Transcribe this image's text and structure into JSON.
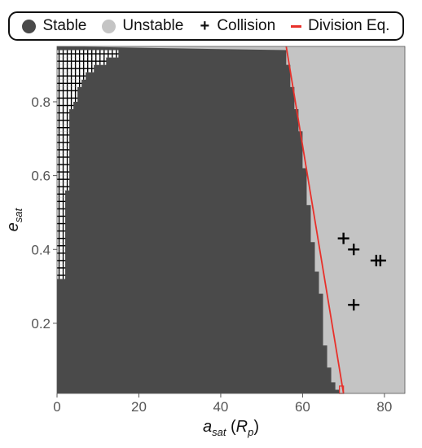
{
  "legend": {
    "items": [
      {
        "label": "Stable",
        "marker": "dot",
        "color": "#4a4a4a"
      },
      {
        "label": "Unstable",
        "marker": "dot",
        "color": "#c4c4c4"
      },
      {
        "label": "Collision",
        "marker": "plus",
        "color": "#000000"
      },
      {
        "label": "Division Eq.",
        "marker": "dash",
        "color": "#e8302a"
      }
    ]
  },
  "chart_data": {
    "type": "heatmap",
    "x_axis": {
      "label_main": "a",
      "label_sub": "sat",
      "label_unit_main": "R",
      "label_unit_sub": "p",
      "lim": [
        0,
        85
      ],
      "ticks": [
        0,
        20,
        40,
        60,
        80
      ]
    },
    "y_axis": {
      "label_main": "e",
      "label_sub": "sat",
      "lim": [
        0.01,
        0.95
      ],
      "ticks": [
        0.2,
        0.4,
        0.6,
        0.8
      ]
    },
    "grid": false,
    "colors": {
      "stable": "#4a4a4a",
      "unstable": "#c4c4c4",
      "collision": "#000000",
      "division": "#e8302a"
    },
    "grid_cell": {
      "da": 1.0,
      "de": 0.02
    },
    "stability_boundary": {
      "description_note": "unstable for a_sat greater than boundary",
      "e": [
        0.02,
        0.04,
        0.06,
        0.08,
        0.1,
        0.12,
        0.14,
        0.16,
        0.18,
        0.2,
        0.22,
        0.24,
        0.26,
        0.28,
        0.3,
        0.32,
        0.34,
        0.36,
        0.38,
        0.4,
        0.42,
        0.44,
        0.46,
        0.48,
        0.5,
        0.52,
        0.54,
        0.56,
        0.58,
        0.6,
        0.62,
        0.64,
        0.66,
        0.68,
        0.7,
        0.72,
        0.74,
        0.76,
        0.78,
        0.8,
        0.82,
        0.84,
        0.86,
        0.88,
        0.9,
        0.92,
        0.94
      ],
      "a": [
        69,
        68,
        67,
        67,
        66,
        66,
        66,
        65,
        65,
        65,
        65,
        65,
        65,
        65,
        64,
        64,
        64,
        63,
        63,
        63,
        63,
        62,
        62,
        62,
        62,
        62,
        61,
        61,
        61,
        61,
        61,
        60,
        60,
        60,
        60,
        60,
        59,
        59,
        59,
        58,
        58,
        58,
        57,
        57,
        57,
        56,
        56
      ]
    },
    "collision_left_region": {
      "note": "collision cells near planet",
      "rows": [
        {
          "e": 0.94,
          "a_max": 15
        },
        {
          "e": 0.92,
          "a_max": 12
        },
        {
          "e": 0.9,
          "a_max": 9
        },
        {
          "e": 0.88,
          "a_max": 7
        },
        {
          "e": 0.86,
          "a_max": 6
        },
        {
          "e": 0.84,
          "a_max": 5
        },
        {
          "e": 0.82,
          "a_max": 5
        },
        {
          "e": 0.8,
          "a_max": 4
        },
        {
          "e": 0.78,
          "a_max": 3
        },
        {
          "e": 0.76,
          "a_max": 3
        },
        {
          "e": 0.74,
          "a_max": 3
        },
        {
          "e": 0.72,
          "a_max": 3
        },
        {
          "e": 0.7,
          "a_max": 3
        },
        {
          "e": 0.68,
          "a_max": 3
        },
        {
          "e": 0.66,
          "a_max": 3
        },
        {
          "e": 0.64,
          "a_max": 3
        },
        {
          "e": 0.62,
          "a_max": 3
        },
        {
          "e": 0.6,
          "a_max": 3
        },
        {
          "e": 0.58,
          "a_max": 3
        },
        {
          "e": 0.56,
          "a_max": 2
        },
        {
          "e": 0.54,
          "a_max": 2
        },
        {
          "e": 0.52,
          "a_max": 2
        },
        {
          "e": 0.5,
          "a_max": 2
        },
        {
          "e": 0.48,
          "a_max": 2
        },
        {
          "e": 0.46,
          "a_max": 2
        },
        {
          "e": 0.44,
          "a_max": 2
        },
        {
          "e": 0.42,
          "a_max": 2
        },
        {
          "e": 0.4,
          "a_max": 2
        },
        {
          "e": 0.38,
          "a_max": 2
        },
        {
          "e": 0.36,
          "a_max": 2
        },
        {
          "e": 0.34,
          "a_max": 2
        }
      ]
    },
    "collision_points": [
      {
        "a": 70,
        "e": 0.43
      },
      {
        "a": 72.5,
        "e": 0.4
      },
      {
        "a": 78,
        "e": 0.37
      },
      {
        "a": 79,
        "e": 0.37
      },
      {
        "a": 72.5,
        "e": 0.25
      }
    ],
    "division_line": {
      "x1": 56,
      "y1": 0.95,
      "x2": 70,
      "y2": 0.01
    }
  }
}
